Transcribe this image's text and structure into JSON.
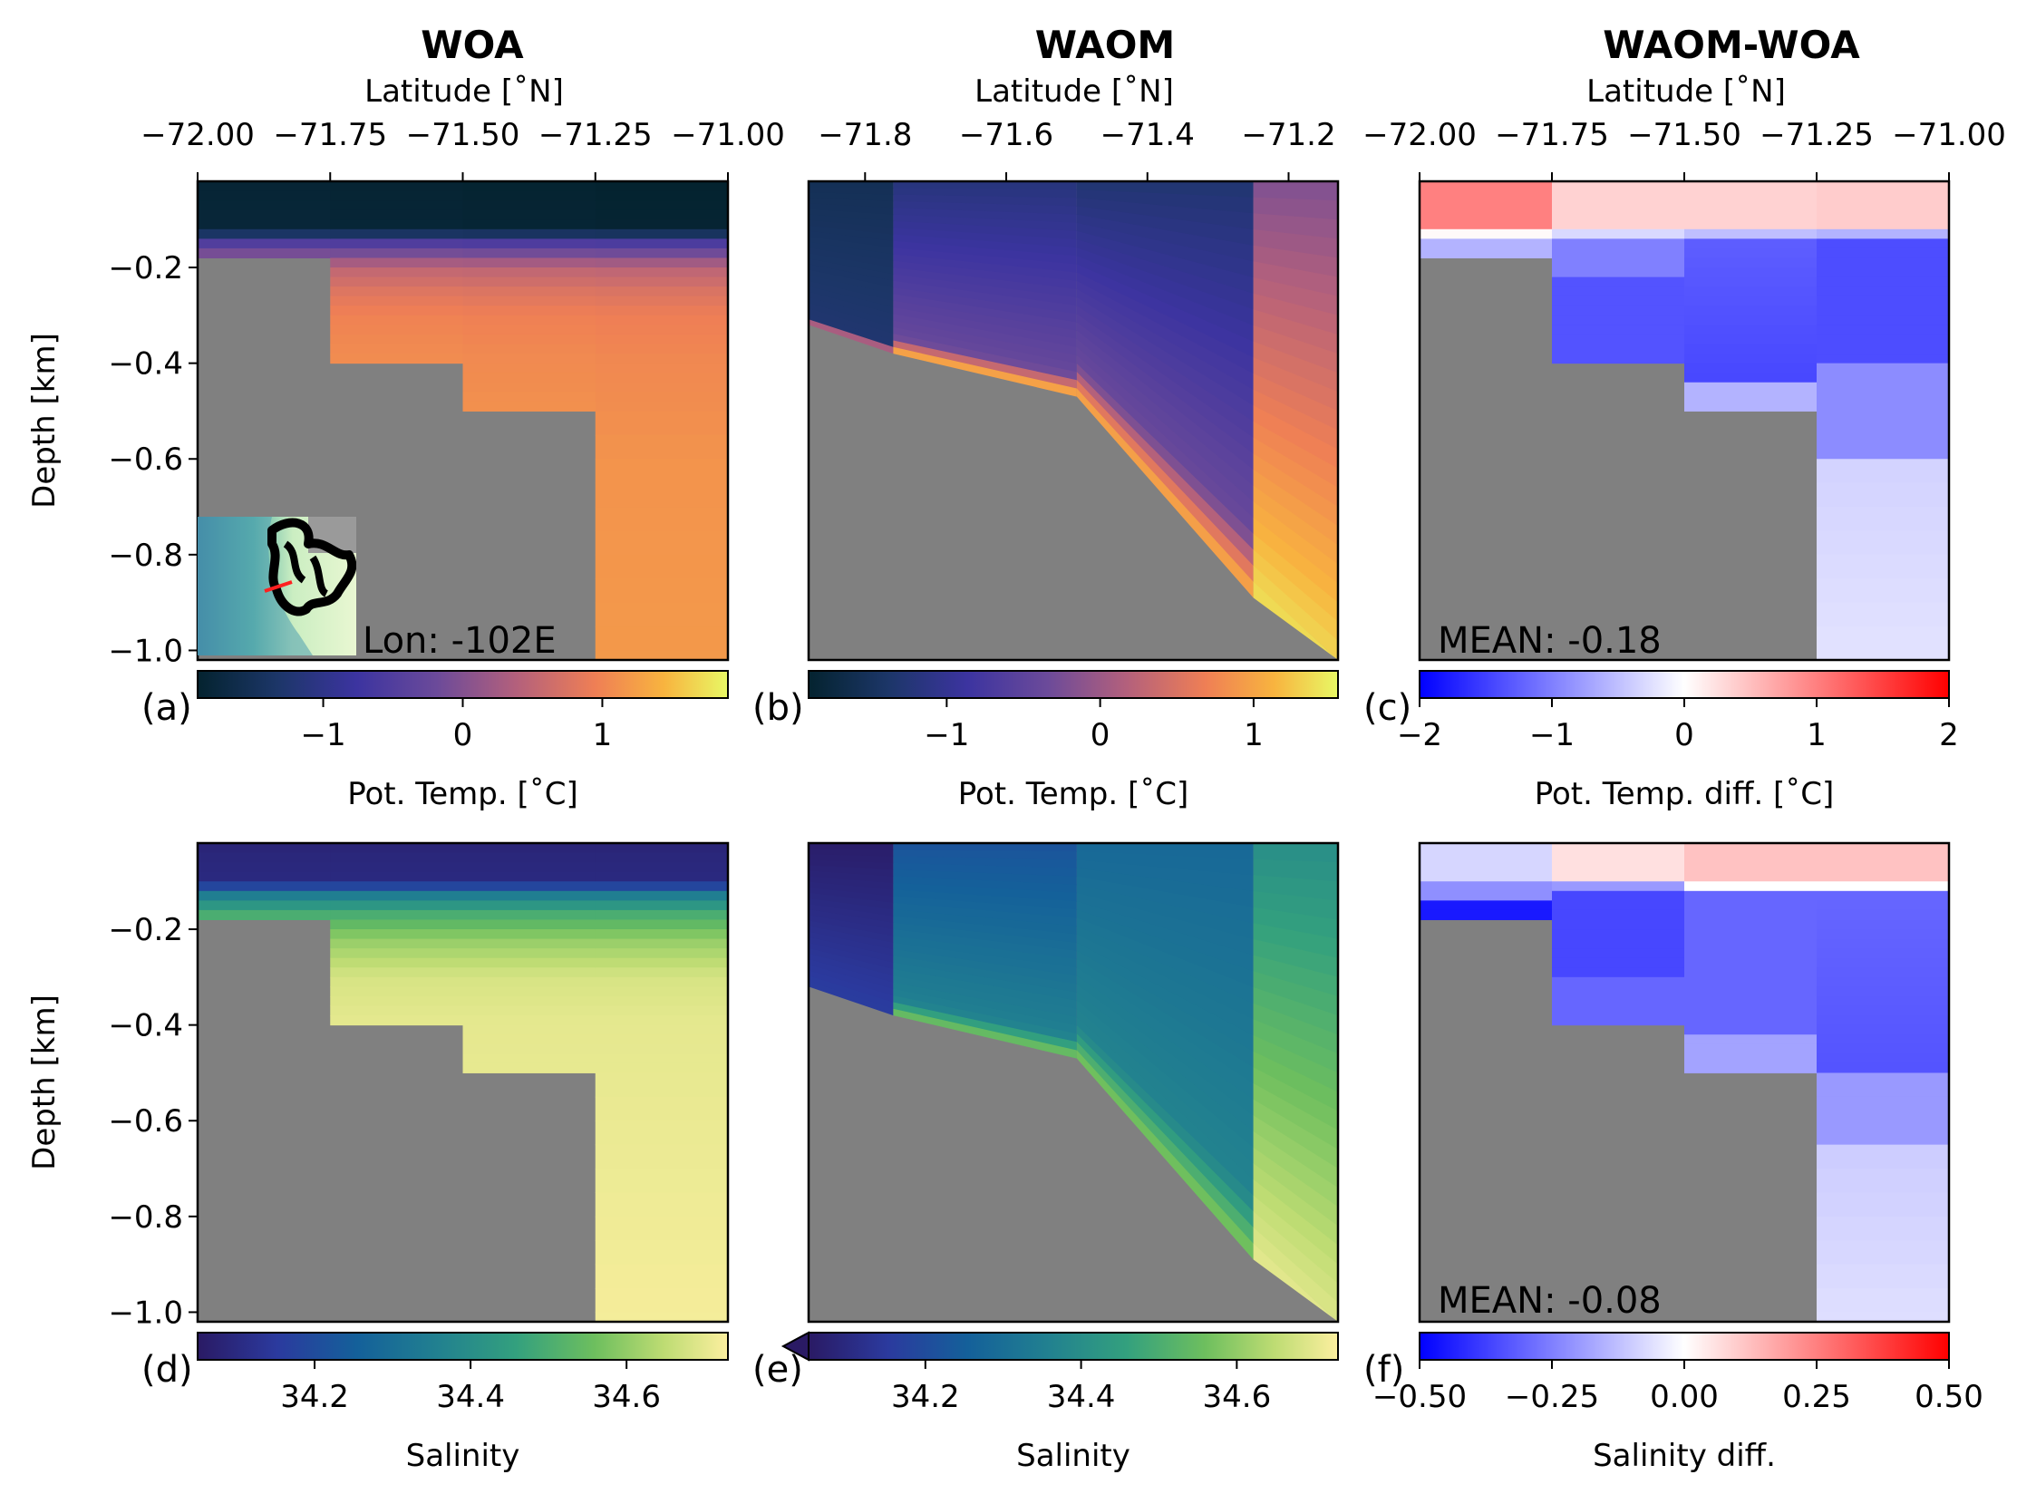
{
  "column_titles": [
    "WOA",
    "WAOM",
    "WAOM-WOA"
  ],
  "colors": {
    "land": "#808080",
    "frame": "#000000"
  },
  "inset": {
    "label": "Lon: -102E"
  },
  "chart_data": [
    {
      "panel": "(a)",
      "type": "heatmap",
      "title": "WOA",
      "xlabel": "Latitude [˚N]",
      "xticks": [
        "−72.00",
        "−71.75",
        "−71.50",
        "−71.25",
        "−71.00"
      ],
      "xlim": [
        -72.0,
        -71.0
      ],
      "ylabel": "Depth [km]",
      "yticks": [
        "−0.2",
        "−0.4",
        "−0.6",
        "−0.8",
        "−1.0"
      ],
      "ylim": [
        -1.02,
        0
      ],
      "colorbar": {
        "label": "Pot. Temp. [˚C]",
        "ticks": [
          "−1",
          "0",
          "1"
        ],
        "cmap": "thermal",
        "range": [
          -1.9,
          1.9
        ]
      },
      "profile": {
        "depth": [
          0,
          -0.12,
          -0.15,
          -0.2,
          -0.25,
          -0.3,
          -0.4,
          -0.6,
          -1.0
        ],
        "value": [
          -1.85,
          -1.8,
          -0.5,
          0.5,
          0.8,
          1.0,
          1.1,
          1.2,
          1.25
        ]
      },
      "bottom_depths": [
        -0.19,
        -0.41,
        -0.53,
        -1.02
      ]
    },
    {
      "panel": "(b)",
      "type": "heatmap",
      "title": "WAOM",
      "xlabel": "Latitude [˚N]",
      "xticks": [
        "−71.8",
        "−71.6",
        "−71.4",
        "−71.2"
      ],
      "xlim": [
        -71.88,
        -71.13
      ],
      "ylabel": "",
      "yticks": [],
      "ylim": [
        -1.02,
        0
      ],
      "colorbar": {
        "label": "Pot. Temp. [˚C]",
        "ticks": [
          "−1",
          "0",
          "1"
        ],
        "cmap": "thermal",
        "range": [
          -1.9,
          1.55
        ]
      },
      "bottom_depths": [
        -0.32,
        -0.38,
        -0.47,
        -0.89,
        -1.02
      ]
    },
    {
      "panel": "(c)",
      "type": "heatmap",
      "title": "WAOM-WOA",
      "xlabel": "Latitude [˚N]",
      "xticks": [
        "−72.00",
        "−71.75",
        "−71.50",
        "−71.25",
        "−71.00"
      ],
      "xlim": [
        -72.0,
        -71.0
      ],
      "ylabel": "",
      "yticks": [],
      "ylim": [
        -1.02,
        0
      ],
      "colorbar": {
        "label": "Pot. Temp. diff. [˚C]",
        "ticks": [
          "−2",
          "−1",
          "0",
          "1",
          "2"
        ],
        "cmap": "bwr",
        "range": [
          -2,
          2
        ]
      },
      "annotation": "MEAN: -0.18"
    },
    {
      "panel": "(d)",
      "type": "heatmap",
      "ylabel": "Depth [km]",
      "yticks": [
        "−0.2",
        "−0.4",
        "−0.6",
        "−0.8",
        "−1.0"
      ],
      "ylim": [
        -1.02,
        0
      ],
      "colorbar": {
        "label": "Salinity",
        "ticks": [
          "34.2",
          "34.4",
          "34.6"
        ],
        "cmap": "haline",
        "range": [
          34.05,
          34.73
        ]
      }
    },
    {
      "panel": "(e)",
      "type": "heatmap",
      "ylabel": "",
      "yticks": [],
      "ylim": [
        -1.02,
        0
      ],
      "colorbar": {
        "label": "Salinity",
        "ticks": [
          "34.2",
          "34.4",
          "34.6"
        ],
        "cmap": "haline",
        "range": [
          34.05,
          34.73
        ],
        "extend": "min"
      }
    },
    {
      "panel": "(f)",
      "type": "heatmap",
      "ylabel": "",
      "yticks": [],
      "ylim": [
        -1.02,
        0
      ],
      "colorbar": {
        "label": "Salinity diff.",
        "ticks": [
          "−0.50",
          "−0.25",
          "0.00",
          "0.25",
          "0.50"
        ],
        "cmap": "bwr",
        "range": [
          -0.5,
          0.5
        ]
      },
      "annotation": "MEAN: -0.08"
    }
  ]
}
